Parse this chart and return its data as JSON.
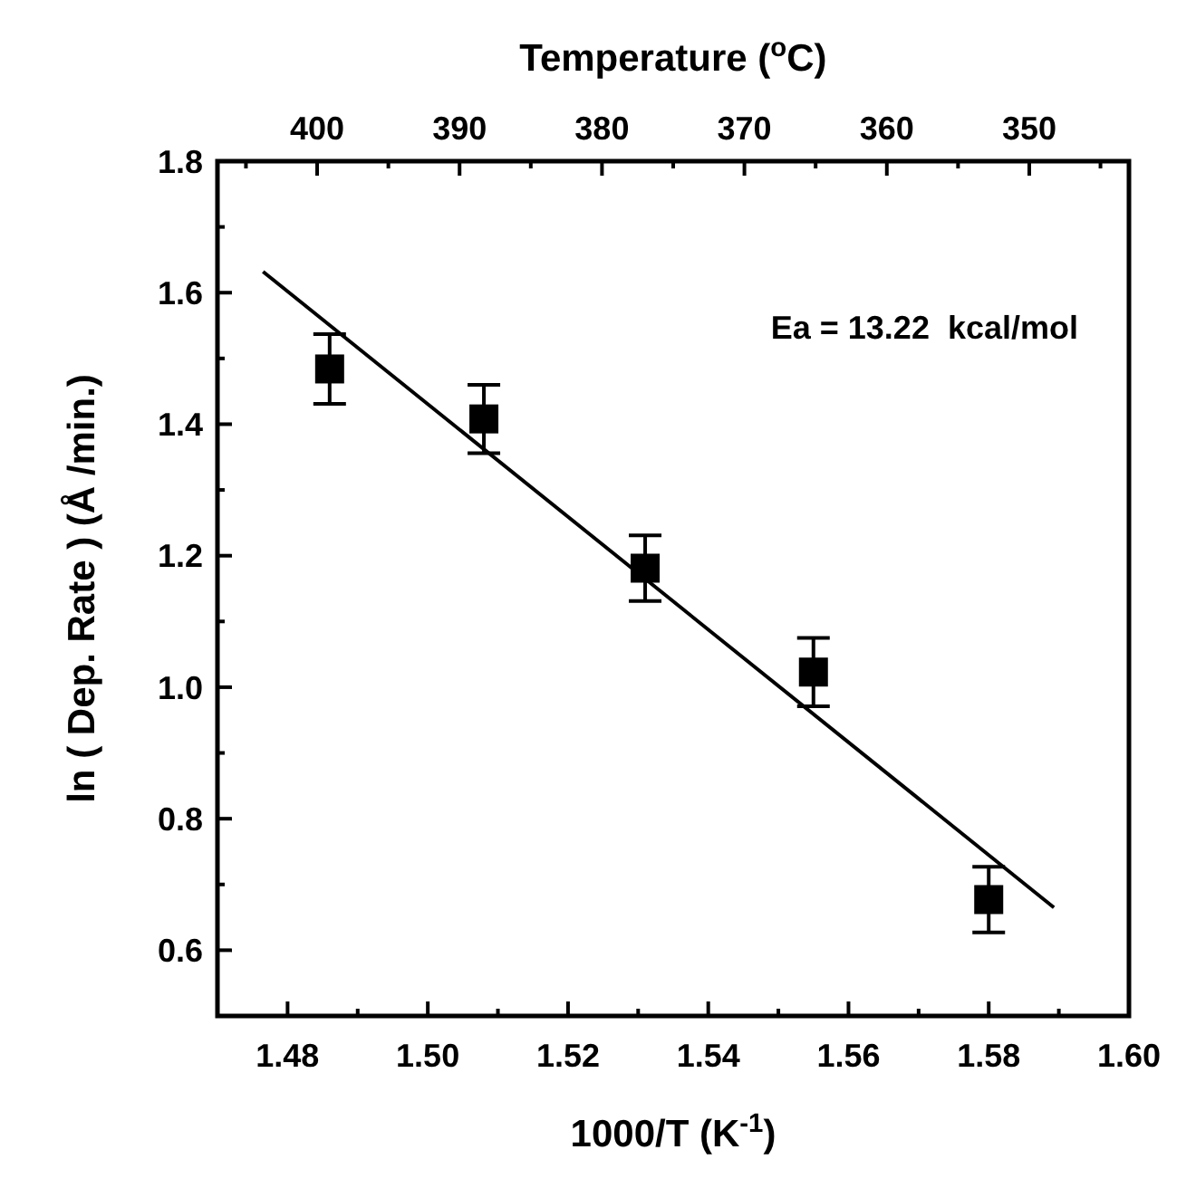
{
  "chart_data": {
    "type": "scatter",
    "xlabel": "1000/T (K$^{-1}$)",
    "ylabel": "ln ( Dep. Rate ) (Å /min.)",
    "x2label": "Temperature ($^{o}$C)",
    "annotations": [
      "Ea = 13.22  kcal/mol"
    ],
    "x": [
      1.486,
      1.508,
      1.531,
      1.555,
      1.58
    ],
    "series": [
      {
        "color": "#000000",
        "marker": "square",
        "values": [
          1.484,
          1.408,
          1.181,
          1.023,
          0.677
        ],
        "errors": [
          0.053,
          0.052,
          0.05,
          0.052,
          0.05
        ]
      },
      {
        "type": "line",
        "color": "#000000",
        "line_style": "solid",
        "x": [
          1.4765,
          1.5893
        ],
        "values": [
          1.632,
          0.665
        ]
      }
    ],
    "xlim": [
      1.47,
      1.6
    ],
    "xticks": [
      1.48,
      {
        "value": 1.49,
        "label": null
      },
      {
        "value": 1.5,
        "label": "1.50"
      },
      {
        "value": 1.51,
        "label": null
      },
      1.52,
      {
        "value": 1.53,
        "label": null
      },
      1.54,
      {
        "value": 1.55,
        "label": null
      },
      1.56,
      {
        "value": 1.57,
        "label": null
      },
      1.58,
      {
        "value": 1.59,
        "label": null
      },
      {
        "value": 1.6,
        "label": "1.60"
      }
    ],
    "ylim": [
      0.5,
      1.8
    ],
    "yticks": [
      {
        "value": 0.6,
        "label": "0.6"
      },
      {
        "value": 0.7,
        "label": null
      },
      {
        "value": 0.8,
        "label": "0.8"
      },
      {
        "value": 0.9,
        "label": null
      },
      {
        "value": 1.0,
        "label": "1.0"
      },
      {
        "value": 1.1,
        "label": null
      },
      {
        "value": 1.2,
        "label": "1.2"
      },
      {
        "value": 1.3,
        "label": null
      },
      {
        "value": 1.4,
        "label": "1.4"
      },
      {
        "value": 1.5,
        "label": null
      },
      {
        "value": 1.6,
        "label": "1.6"
      },
      {
        "value": 1.7,
        "label": null
      },
      {
        "value": 1.8,
        "label": "1.8"
      }
    ],
    "x2lim": [
      407,
      343
    ],
    "x2ticks": [
      {
        "value": 405,
        "label": null
      },
      400,
      {
        "value": 395,
        "label": null
      },
      390,
      {
        "value": 385,
        "label": null
      },
      380,
      {
        "value": 375,
        "label": null
      },
      370,
      {
        "value": 365,
        "label": null
      },
      360,
      {
        "value": 355,
        "label": null
      },
      350,
      {
        "value": 345,
        "label": null
      }
    ],
    "grid": false
  }
}
